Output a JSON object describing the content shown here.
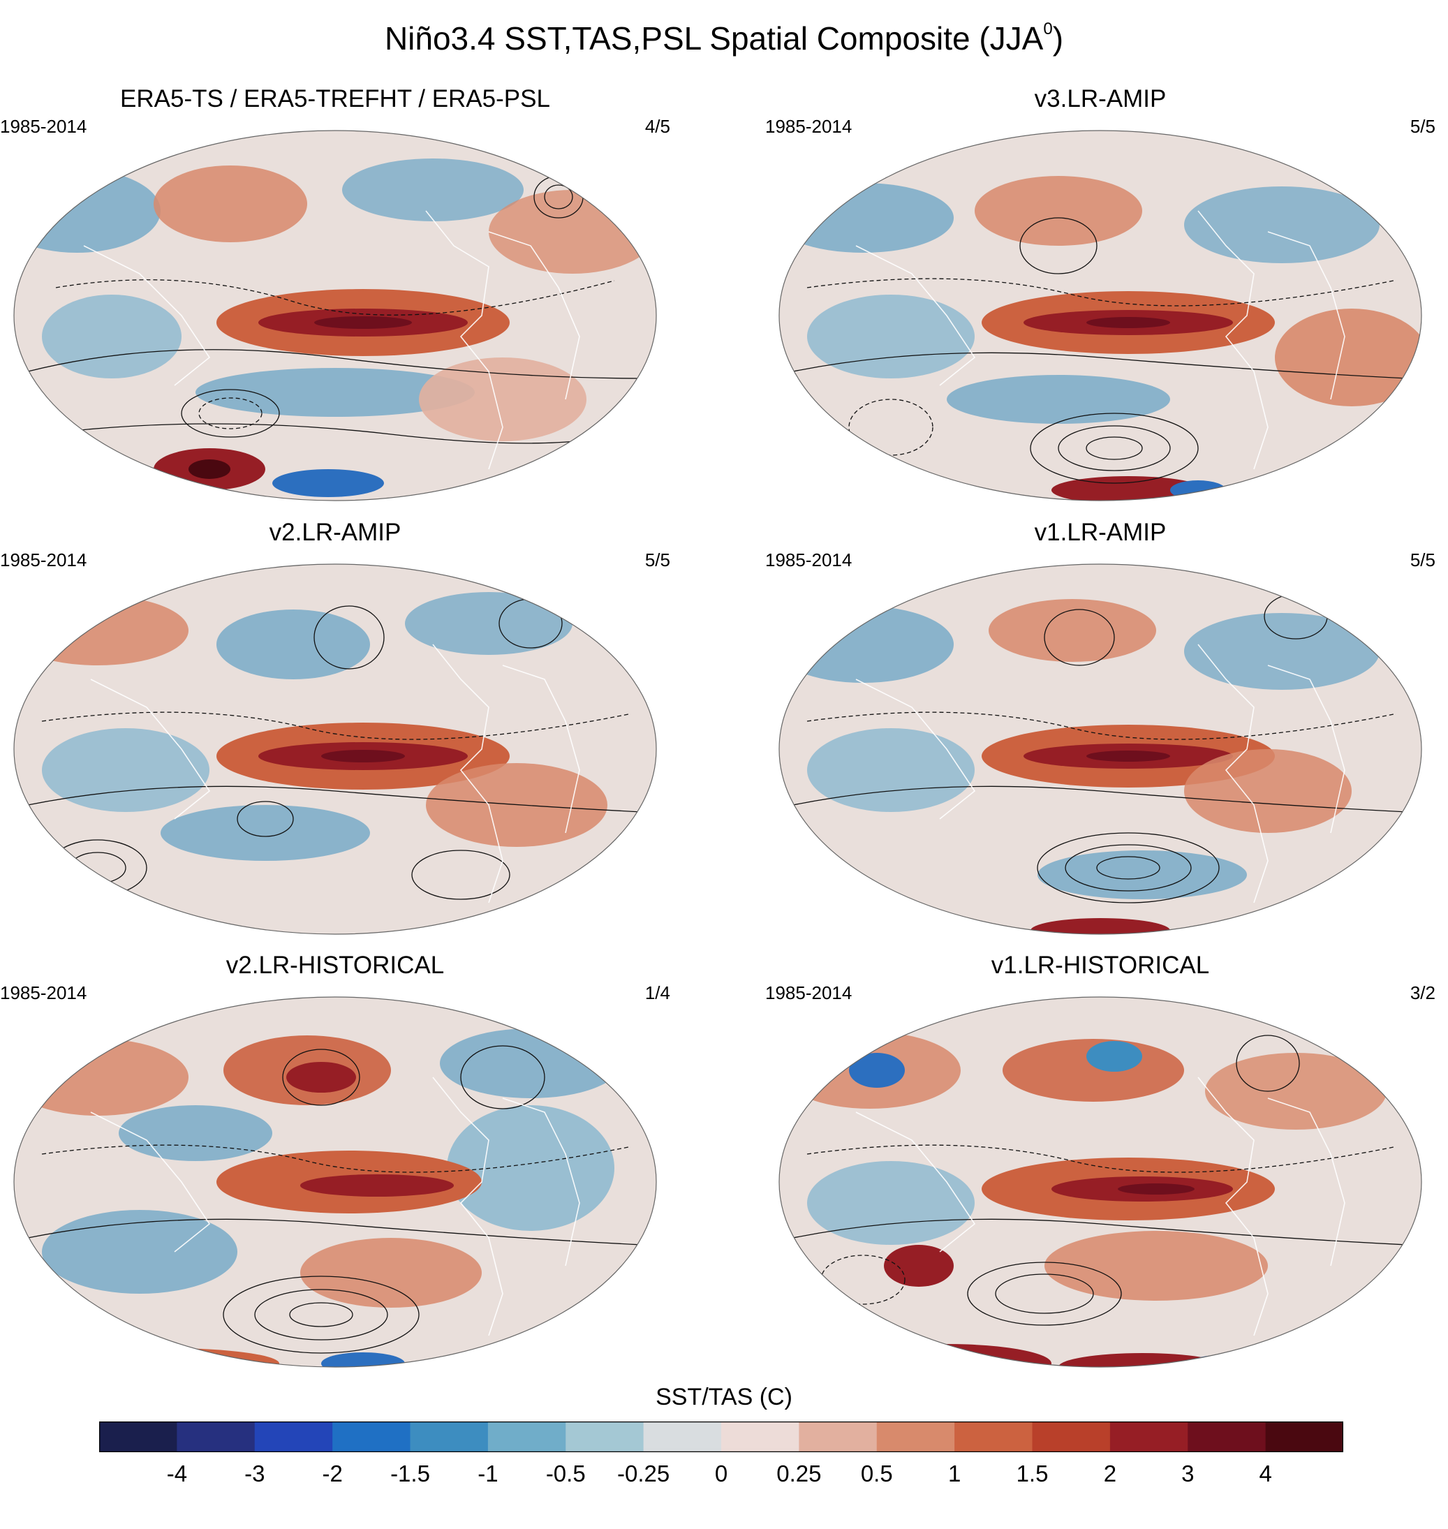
{
  "title": "Niño3.4 SST,TAS,PSL Spatial Composite (JJA",
  "title_superscript": "0",
  "title_suffix": ")",
  "panels": [
    {
      "title": "ERA5-TS / ERA5-TREFHT / ERA5-PSL",
      "years": "1985-2014",
      "count": "4/5"
    },
    {
      "title": "v3.LR-AMIP",
      "years": "1985-2014",
      "count": "5/5"
    },
    {
      "title": "v2.LR-AMIP",
      "years": "1985-2014",
      "count": "5/5"
    },
    {
      "title": "v1.LR-AMIP",
      "years": "1985-2014",
      "count": "5/5"
    },
    {
      "title": "v2.LR-HISTORICAL",
      "years": "1985-2014",
      "count": "1/4"
    },
    {
      "title": "v1.LR-HISTORICAL",
      "years": "1985-2014",
      "count": "3/2"
    }
  ],
  "colorbar": {
    "title": "SST/TAS (C)",
    "tick_labels": [
      "-4",
      "-3",
      "-2",
      "-1.5",
      "-1",
      "-0.5",
      "-0.25",
      "0",
      "0.25",
      "0.5",
      "1",
      "1.5",
      "2",
      "3",
      "4"
    ],
    "colors": [
      "#1a1f4d",
      "#26307f",
      "#2345b8",
      "#1f70c4",
      "#3d8dc0",
      "#70adc9",
      "#a4c8d4",
      "#d9dde0",
      "#eddcd8",
      "#e2b09f",
      "#d88a6c",
      "#cc6240",
      "#b9402a",
      "#961e25",
      "#6e0f1d",
      "#4a0810"
    ]
  },
  "map_colors": {
    "warm": "#c4543a",
    "deep_warm": "#8c1a22",
    "cool": "#6aa3c5",
    "deep_cool": "#2c6fbf",
    "neutral": "#e9dfdb"
  }
}
